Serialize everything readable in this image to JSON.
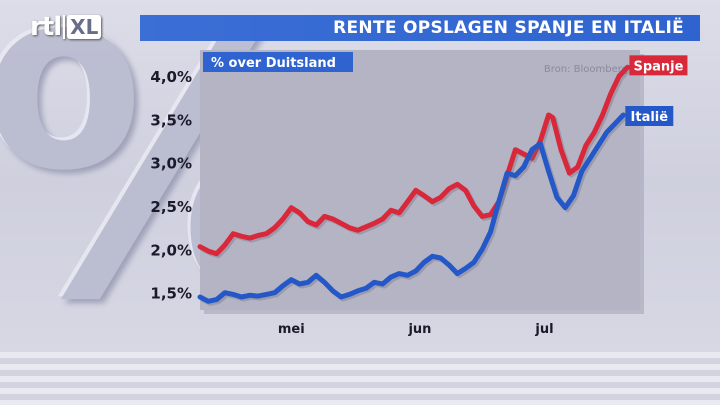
{
  "header": {
    "logo_rtl": "rtl",
    "logo_xl": "XL",
    "title": "RENTE OPSLAGEN SPANJE EN ITALIË"
  },
  "colors": {
    "title_bar": "#2f63cf",
    "spanje": "#d8283a",
    "italie": "#2458c8",
    "plot_bg": "#b4b4c4"
  },
  "chart_data": {
    "type": "line",
    "subtitle": "% over Duitsland",
    "source": "Bron: Bloomberg",
    "x_ticks": [
      {
        "label": "mei",
        "x": 22
      },
      {
        "label": "jun",
        "x": 53
      },
      {
        "label": "jul",
        "x": 83
      }
    ],
    "x_range": [
      0,
      100
    ],
    "y_ticks": [
      "1,5%",
      "2,0%",
      "2,5%",
      "3,0%",
      "3,5%",
      "4,0%"
    ],
    "y_tick_values": [
      1.5,
      2.0,
      2.5,
      3.0,
      3.5,
      4.0
    ],
    "ylim": [
      1.3,
      4.3
    ],
    "series": [
      {
        "name": "Spanje",
        "color": "#d8283a",
        "points": [
          [
            0,
            2.03
          ],
          [
            2,
            1.98
          ],
          [
            4,
            1.95
          ],
          [
            6,
            2.05
          ],
          [
            8,
            2.18
          ],
          [
            10,
            2.15
          ],
          [
            12,
            2.13
          ],
          [
            14,
            2.16
          ],
          [
            16,
            2.18
          ],
          [
            18,
            2.25
          ],
          [
            20,
            2.35
          ],
          [
            22,
            2.48
          ],
          [
            24,
            2.42
          ],
          [
            26,
            2.32
          ],
          [
            28,
            2.28
          ],
          [
            30,
            2.38
          ],
          [
            32,
            2.35
          ],
          [
            34,
            2.3
          ],
          [
            36,
            2.25
          ],
          [
            38,
            2.22
          ],
          [
            40,
            2.26
          ],
          [
            42,
            2.3
          ],
          [
            44,
            2.35
          ],
          [
            46,
            2.45
          ],
          [
            48,
            2.42
          ],
          [
            50,
            2.55
          ],
          [
            52,
            2.68
          ],
          [
            54,
            2.62
          ],
          [
            56,
            2.55
          ],
          [
            58,
            2.6
          ],
          [
            60,
            2.7
          ],
          [
            62,
            2.75
          ],
          [
            64,
            2.68
          ],
          [
            66,
            2.5
          ],
          [
            68,
            2.38
          ],
          [
            70,
            2.4
          ],
          [
            72,
            2.55
          ],
          [
            74,
            2.85
          ],
          [
            76,
            3.15
          ],
          [
            78,
            3.1
          ],
          [
            80,
            3.05
          ],
          [
            82,
            3.25
          ],
          [
            84,
            3.55
          ],
          [
            85,
            3.52
          ],
          [
            87,
            3.15
          ],
          [
            89,
            2.88
          ],
          [
            91,
            2.95
          ],
          [
            93,
            3.2
          ],
          [
            95,
            3.35
          ],
          [
            97,
            3.55
          ],
          [
            99,
            3.8
          ],
          [
            101,
            4.0
          ],
          [
            103,
            4.1
          ]
        ]
      },
      {
        "name": "Italië",
        "color": "#2458c8",
        "points": [
          [
            0,
            1.45
          ],
          [
            2,
            1.4
          ],
          [
            4,
            1.42
          ],
          [
            6,
            1.5
          ],
          [
            8,
            1.48
          ],
          [
            10,
            1.45
          ],
          [
            12,
            1.47
          ],
          [
            14,
            1.46
          ],
          [
            16,
            1.48
          ],
          [
            18,
            1.5
          ],
          [
            20,
            1.58
          ],
          [
            22,
            1.65
          ],
          [
            24,
            1.6
          ],
          [
            26,
            1.62
          ],
          [
            28,
            1.7
          ],
          [
            30,
            1.62
          ],
          [
            32,
            1.52
          ],
          [
            34,
            1.45
          ],
          [
            36,
            1.48
          ],
          [
            38,
            1.52
          ],
          [
            40,
            1.55
          ],
          [
            42,
            1.62
          ],
          [
            44,
            1.6
          ],
          [
            46,
            1.68
          ],
          [
            48,
            1.72
          ],
          [
            50,
            1.7
          ],
          [
            52,
            1.75
          ],
          [
            54,
            1.85
          ],
          [
            56,
            1.92
          ],
          [
            58,
            1.9
          ],
          [
            60,
            1.82
          ],
          [
            62,
            1.72
          ],
          [
            64,
            1.78
          ],
          [
            66,
            1.85
          ],
          [
            68,
            2.0
          ],
          [
            70,
            2.2
          ],
          [
            72,
            2.55
          ],
          [
            74,
            2.88
          ],
          [
            76,
            2.85
          ],
          [
            78,
            2.95
          ],
          [
            80,
            3.15
          ],
          [
            82,
            3.22
          ],
          [
            84,
            2.9
          ],
          [
            86,
            2.6
          ],
          [
            88,
            2.48
          ],
          [
            90,
            2.62
          ],
          [
            92,
            2.9
          ],
          [
            94,
            3.05
          ],
          [
            96,
            3.2
          ],
          [
            98,
            3.35
          ],
          [
            100,
            3.45
          ],
          [
            102,
            3.55
          ]
        ]
      }
    ]
  }
}
